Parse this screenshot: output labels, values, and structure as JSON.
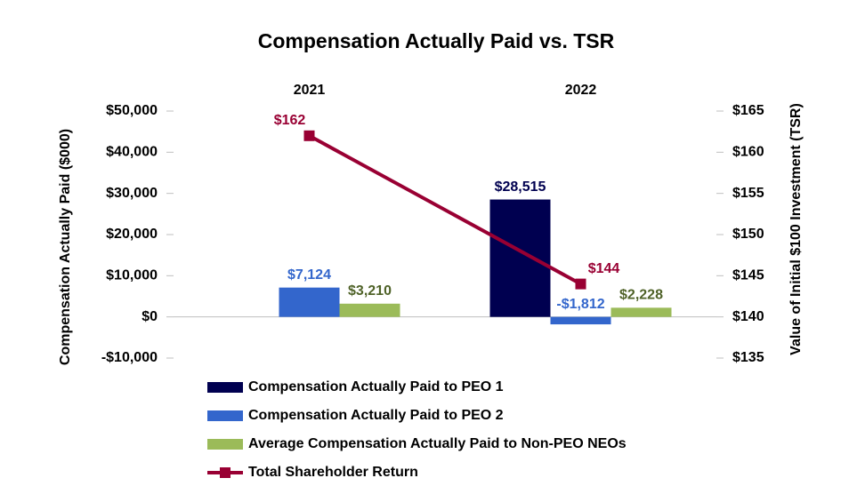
{
  "chart_data": {
    "type": "bar",
    "title": "Compensation Actually Paid vs. TSR",
    "y_label": "Compensation Actually Paid ($000)",
    "y2_label": "Value of Initial $100 Investment (TSR)",
    "categories": [
      "2021",
      "2022"
    ],
    "series": [
      {
        "name": "Compensation Actually Paid to PEO 1",
        "type": "bar",
        "color": "#000050",
        "label_color": "#000050",
        "values": [
          null,
          28515
        ],
        "value_labels": [
          null,
          "$28,515"
        ]
      },
      {
        "name": "Compensation Actually Paid to PEO 2",
        "type": "bar",
        "color": "#3366cc",
        "label_color": "#3366cc",
        "values": [
          7124,
          -1812
        ],
        "value_labels": [
          "$7,124",
          "-$1,812"
        ]
      },
      {
        "name": "Average Compensation Actually Paid to Non-PEO NEOs",
        "type": "bar",
        "color": "#9bbb59",
        "label_color": "#4f6228",
        "values": [
          3210,
          2228
        ],
        "value_labels": [
          "$3,210",
          "$2,228"
        ]
      },
      {
        "name": "Total Shareholder Return",
        "type": "line",
        "axis": "y2",
        "color": "#990033",
        "label_color": "#990033",
        "values": [
          162,
          144
        ],
        "value_labels": [
          "$162",
          "$144"
        ]
      }
    ],
    "ylim": [
      -10000,
      50000
    ],
    "yticks": [
      {
        "value": -10000,
        "label": "-$10,000"
      },
      {
        "value": 0,
        "label": "$0"
      },
      {
        "value": 10000,
        "label": "$10,000"
      },
      {
        "value": 20000,
        "label": "$20,000"
      },
      {
        "value": 30000,
        "label": "$30,000"
      },
      {
        "value": 40000,
        "label": "$40,000"
      },
      {
        "value": 50000,
        "label": "$50,000"
      }
    ],
    "y2lim": [
      135,
      165
    ],
    "y2ticks": [
      {
        "value": 135,
        "label": "$135"
      },
      {
        "value": 140,
        "label": "$140"
      },
      {
        "value": 145,
        "label": "$145"
      },
      {
        "value": 150,
        "label": "$150"
      },
      {
        "value": 155,
        "label": "$155"
      },
      {
        "value": 160,
        "label": "$160"
      },
      {
        "value": 165,
        "label": "$165"
      }
    ],
    "grid": false,
    "legend": "bottom"
  }
}
